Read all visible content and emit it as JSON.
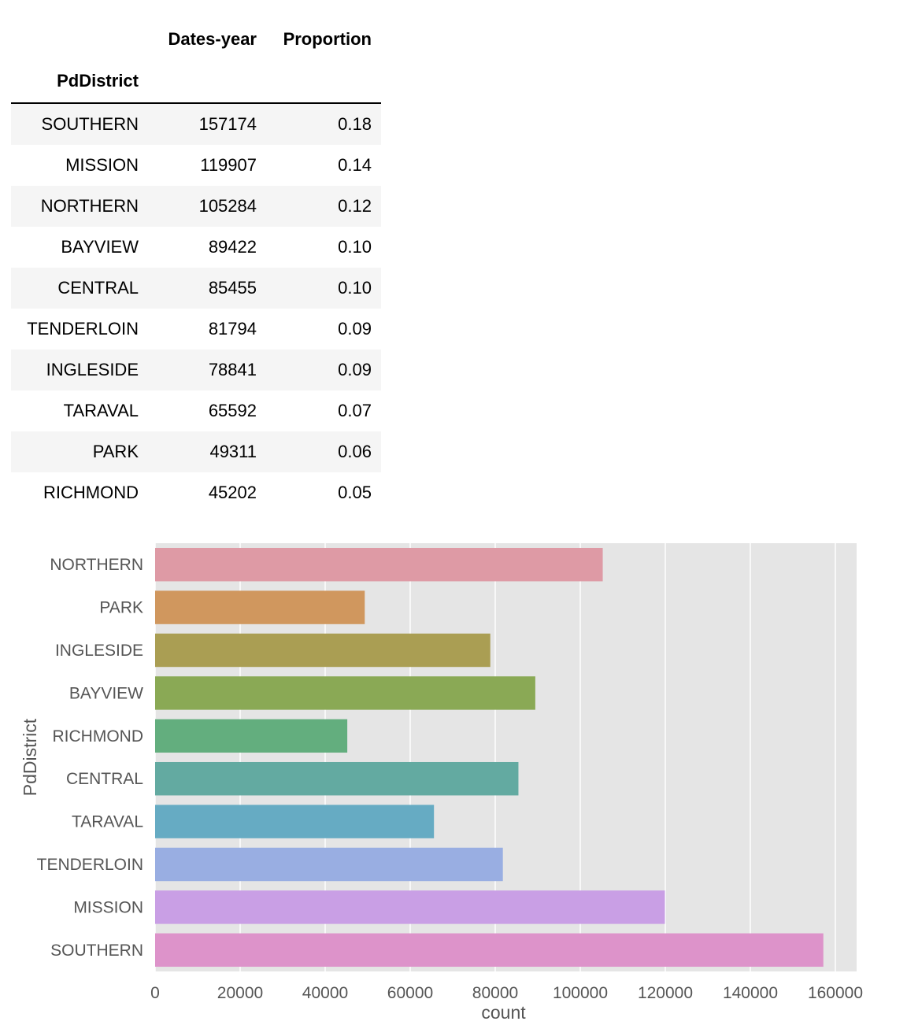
{
  "table": {
    "index_name": "PdDistrict",
    "columns": [
      "Dates-year",
      "Proportion"
    ],
    "rows": [
      {
        "district": "SOUTHERN",
        "count": "157174",
        "proportion": "0.18"
      },
      {
        "district": "MISSION",
        "count": "119907",
        "proportion": "0.14"
      },
      {
        "district": "NORTHERN",
        "count": "105284",
        "proportion": "0.12"
      },
      {
        "district": "BAYVIEW",
        "count": "89422",
        "proportion": "0.10"
      },
      {
        "district": "CENTRAL",
        "count": "85455",
        "proportion": "0.10"
      },
      {
        "district": "TENDERLOIN",
        "count": "81794",
        "proportion": "0.09"
      },
      {
        "district": "INGLESIDE",
        "count": "78841",
        "proportion": "0.09"
      },
      {
        "district": "TARAVAL",
        "count": "65592",
        "proportion": "0.07"
      },
      {
        "district": "PARK",
        "count": "49311",
        "proportion": "0.06"
      },
      {
        "district": "RICHMOND",
        "count": "45202",
        "proportion": "0.05"
      }
    ]
  },
  "chart_data": {
    "type": "bar",
    "orientation": "horizontal",
    "categories": [
      "NORTHERN",
      "PARK",
      "INGLESIDE",
      "BAYVIEW",
      "RICHMOND",
      "CENTRAL",
      "TARAVAL",
      "TENDERLOIN",
      "MISSION",
      "SOUTHERN"
    ],
    "values": [
      105284,
      49311,
      78841,
      89422,
      45202,
      85455,
      65592,
      81794,
      119907,
      157174
    ],
    "colors": [
      "#de9aa5",
      "#d0975e",
      "#aa9e53",
      "#8aa955",
      "#63ae7e",
      "#63aaa1",
      "#66abc3",
      "#99aee2",
      "#c99fe5",
      "#dd93ca"
    ],
    "xlabel": "count",
    "ylabel": "PdDistrict",
    "xlim": [
      0,
      165000
    ],
    "xticks": [
      0,
      20000,
      40000,
      60000,
      80000,
      100000,
      120000,
      140000,
      160000
    ],
    "grid": true,
    "background": "#e5e5e5"
  }
}
